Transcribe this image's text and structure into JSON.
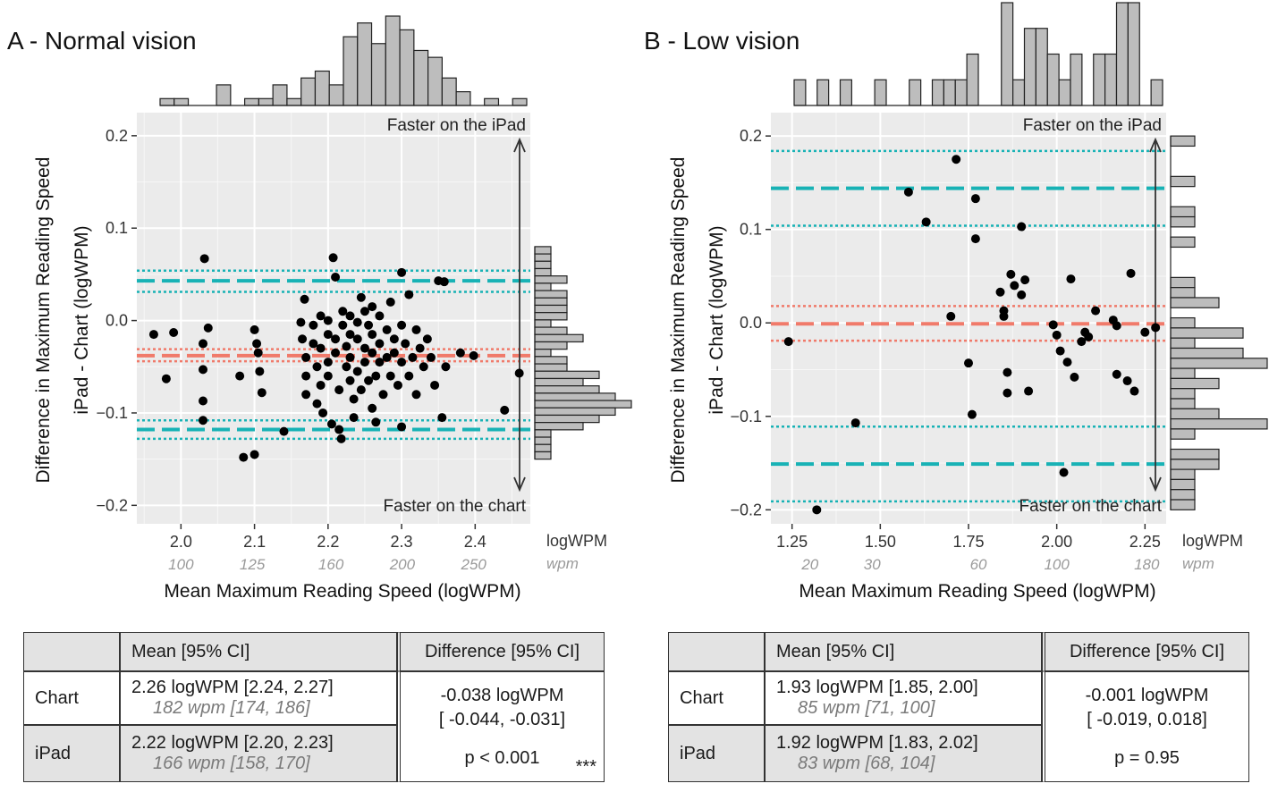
{
  "chart_data": [
    {
      "type": "scatter",
      "title": "A - Normal vision",
      "xlabel": "Mean Maximum Reading Speed (logWPM)",
      "ylabel": "Difference in Maximum Reading Speed iPad - Chart (logWPM)",
      "xlim": [
        1.94,
        2.475
      ],
      "ylim": [
        -0.22,
        0.225
      ],
      "x_ticks": [
        2.0,
        2.1,
        2.2,
        2.3,
        2.4
      ],
      "x_tick_labels": [
        "2.0",
        "2.1",
        "2.2",
        "2.3",
        "2.4"
      ],
      "x_unit_label": "logWPM",
      "wpm_ticks": [
        100,
        125,
        160,
        200,
        250
      ],
      "wpm_unit_label": "wpm",
      "y_ticks": [
        -0.2,
        -0.1,
        0.0,
        0.1,
        0.2
      ],
      "y_tick_labels": [
        "−0.2",
        "−0.1",
        "0.0",
        "0.1",
        "0.2"
      ],
      "annotation_top": "Faster on the iPad",
      "annotation_bottom": "Faster on the chart",
      "mean_diff": -0.038,
      "ci_mean": [
        -0.044,
        -0.031
      ],
      "loa_lower": -0.118,
      "loa_upper": 0.043,
      "loa_lower_ci": [
        -0.128,
        -0.108
      ],
      "loa_upper_ci": [
        0.031,
        0.054
      ],
      "colors": {
        "bias": "#f07a6a",
        "loa": "#18b2b5",
        "panel": "#ebebeb",
        "hist": "#bdbdbd"
      },
      "points": [
        [
          1.963,
          -0.015
        ],
        [
          1.99,
          -0.013
        ],
        [
          1.98,
          -0.063
        ],
        [
          2.032,
          0.067
        ],
        [
          2.03,
          -0.025
        ],
        [
          2.03,
          -0.053
        ],
        [
          2.03,
          -0.087
        ],
        [
          2.03,
          -0.108
        ],
        [
          2.037,
          -0.008
        ],
        [
          2.08,
          -0.06
        ],
        [
          2.085,
          -0.148
        ],
        [
          2.1,
          -0.145
        ],
        [
          2.1,
          -0.01
        ],
        [
          2.103,
          -0.025
        ],
        [
          2.105,
          -0.035
        ],
        [
          2.107,
          -0.055
        ],
        [
          2.11,
          -0.078
        ],
        [
          2.14,
          -0.12
        ],
        [
          2.163,
          -0.002
        ],
        [
          2.165,
          -0.02
        ],
        [
          2.17,
          -0.04
        ],
        [
          2.17,
          -0.06
        ],
        [
          2.17,
          -0.08
        ],
        [
          2.168,
          0.023
        ],
        [
          2.18,
          -0.005
        ],
        [
          2.18,
          -0.025
        ],
        [
          2.185,
          -0.05
        ],
        [
          2.185,
          -0.09
        ],
        [
          2.19,
          0.005
        ],
        [
          2.19,
          -0.03
        ],
        [
          2.19,
          -0.07
        ],
        [
          2.193,
          -0.1
        ],
        [
          2.2,
          0.0
        ],
        [
          2.2,
          -0.015
        ],
        [
          2.2,
          -0.045
        ],
        [
          2.2,
          -0.06
        ],
        [
          2.205,
          -0.112
        ],
        [
          2.207,
          0.068
        ],
        [
          2.21,
          0.047
        ],
        [
          2.21,
          -0.02
        ],
        [
          2.21,
          -0.035
        ],
        [
          2.215,
          -0.075
        ],
        [
          2.215,
          -0.118
        ],
        [
          2.218,
          -0.128
        ],
        [
          2.22,
          0.01
        ],
        [
          2.22,
          -0.005
        ],
        [
          2.225,
          -0.028
        ],
        [
          2.225,
          -0.05
        ],
        [
          2.23,
          0.005
        ],
        [
          2.23,
          -0.015
        ],
        [
          2.23,
          -0.04
        ],
        [
          2.23,
          -0.065
        ],
        [
          2.235,
          -0.085
        ],
        [
          2.235,
          -0.105
        ],
        [
          2.24,
          -0.002
        ],
        [
          2.24,
          -0.02
        ],
        [
          2.24,
          -0.055
        ],
        [
          2.245,
          0.025
        ],
        [
          2.245,
          -0.075
        ],
        [
          2.25,
          0.01
        ],
        [
          2.25,
          -0.03
        ],
        [
          2.25,
          -0.045
        ],
        [
          2.255,
          -0.005
        ],
        [
          2.255,
          -0.065
        ],
        [
          2.26,
          0.015
        ],
        [
          2.26,
          -0.015
        ],
        [
          2.26,
          -0.035
        ],
        [
          2.26,
          -0.095
        ],
        [
          2.265,
          -0.11
        ],
        [
          2.265,
          -0.06
        ],
        [
          2.27,
          0.005
        ],
        [
          2.27,
          -0.025
        ],
        [
          2.27,
          -0.045
        ],
        [
          2.275,
          -0.08
        ],
        [
          2.28,
          -0.01
        ],
        [
          2.28,
          -0.04
        ],
        [
          2.285,
          0.02
        ],
        [
          2.285,
          -0.06
        ],
        [
          2.29,
          -0.02
        ],
        [
          2.29,
          -0.035
        ],
        [
          2.295,
          -0.07
        ],
        [
          2.3,
          0.052
        ],
        [
          2.3,
          -0.005
        ],
        [
          2.3,
          -0.045
        ],
        [
          2.3,
          -0.115
        ],
        [
          2.305,
          -0.025
        ],
        [
          2.31,
          0.028
        ],
        [
          2.31,
          -0.06
        ],
        [
          2.315,
          -0.04
        ],
        [
          2.32,
          -0.01
        ],
        [
          2.32,
          -0.08
        ],
        [
          2.325,
          -0.03
        ],
        [
          2.33,
          -0.05
        ],
        [
          2.335,
          -0.02
        ],
        [
          2.34,
          -0.04
        ],
        [
          2.345,
          -0.07
        ],
        [
          2.35,
          0.043
        ],
        [
          2.355,
          -0.105
        ],
        [
          2.358,
          0.042
        ],
        [
          2.36,
          -0.05
        ],
        [
          2.38,
          -0.035
        ],
        [
          2.398,
          -0.038
        ],
        [
          2.44,
          -0.097
        ],
        [
          2.46,
          -0.057
        ]
      ],
      "hist_x": [
        1,
        1,
        0,
        0,
        3,
        0,
        1,
        1,
        3,
        1,
        4,
        5,
        3,
        10,
        12,
        9,
        13,
        11,
        8,
        7,
        4,
        2,
        0,
        1,
        0,
        1
      ],
      "hist_y": [
        1,
        1,
        1,
        1,
        2,
        1,
        2,
        2,
        2,
        2,
        1,
        2,
        3,
        2,
        1,
        2,
        2,
        4,
        3,
        4,
        5,
        6,
        5,
        4,
        3,
        1,
        1,
        1,
        1
      ]
    },
    {
      "type": "scatter",
      "title": "B - Low vision",
      "xlabel": "Mean Maximum Reading Speed (logWPM)",
      "ylabel": "Difference in Maximum Reading Speed iPad - Chart (logWPM)",
      "xlim": [
        1.19,
        2.31
      ],
      "ylim": [
        -0.215,
        0.225
      ],
      "x_ticks": [
        1.25,
        1.5,
        1.75,
        2.0,
        2.25
      ],
      "x_tick_labels": [
        "1.25",
        "1.50",
        "1.75",
        "2.00",
        "2.25"
      ],
      "x_unit_label": "logWPM",
      "wpm_ticks": [
        20,
        30,
        60,
        100,
        180
      ],
      "wpm_unit_label": "wpm",
      "y_ticks": [
        -0.2,
        -0.1,
        0.0,
        0.1,
        0.2
      ],
      "y_tick_labels": [
        "−0.2",
        "−0.1",
        "0.0",
        "0.1",
        "0.2"
      ],
      "annotation_top": "Faster on the iPad",
      "annotation_bottom": "Faster on the chart",
      "mean_diff": -0.001,
      "ci_mean": [
        -0.019,
        0.018
      ],
      "loa_lower": -0.151,
      "loa_upper": 0.144,
      "loa_lower_ci": [
        -0.191,
        -0.111
      ],
      "loa_upper_ci": [
        0.104,
        0.184
      ],
      "colors": {
        "bias": "#f07a6a",
        "loa": "#18b2b5",
        "panel": "#ebebeb",
        "hist": "#bdbdbd"
      },
      "points": [
        [
          1.24,
          -0.02
        ],
        [
          1.32,
          -0.2
        ],
        [
          1.43,
          -0.107
        ],
        [
          1.58,
          0.14
        ],
        [
          1.63,
          0.108
        ],
        [
          1.7,
          0.007
        ],
        [
          1.715,
          0.175
        ],
        [
          1.75,
          -0.043
        ],
        [
          1.76,
          -0.098
        ],
        [
          1.77,
          0.133
        ],
        [
          1.77,
          0.09
        ],
        [
          1.84,
          0.033
        ],
        [
          1.85,
          0.013
        ],
        [
          1.85,
          0.007
        ],
        [
          1.86,
          -0.053
        ],
        [
          1.86,
          -0.075
        ],
        [
          1.87,
          0.052
        ],
        [
          1.88,
          0.04
        ],
        [
          1.9,
          0.103
        ],
        [
          1.9,
          0.03
        ],
        [
          1.91,
          0.046
        ],
        [
          1.92,
          -0.073
        ],
        [
          1.99,
          -0.002
        ],
        [
          2.0,
          -0.013
        ],
        [
          2.01,
          -0.03
        ],
        [
          2.02,
          -0.16
        ],
        [
          2.03,
          -0.042
        ],
        [
          2.04,
          0.047
        ],
        [
          2.05,
          -0.058
        ],
        [
          2.07,
          -0.02
        ],
        [
          2.08,
          -0.01
        ],
        [
          2.09,
          -0.015
        ],
        [
          2.11,
          0.013
        ],
        [
          2.16,
          0.003
        ],
        [
          2.17,
          -0.003
        ],
        [
          2.17,
          -0.055
        ],
        [
          2.2,
          -0.062
        ],
        [
          2.21,
          0.053
        ],
        [
          2.22,
          -0.073
        ],
        [
          2.25,
          -0.01
        ],
        [
          2.28,
          -0.005
        ]
      ],
      "hist_x": [
        1,
        0,
        1,
        0,
        1,
        0,
        0,
        1,
        0,
        0,
        1,
        0,
        1,
        1,
        1,
        2,
        0,
        0,
        4,
        1,
        3,
        3,
        2,
        1,
        2,
        0,
        2,
        2,
        4,
        4,
        0,
        1
      ],
      "hist_y": [
        1,
        0,
        0,
        0,
        1,
        0,
        0,
        1,
        1,
        0,
        1,
        0,
        0,
        0,
        1,
        1,
        2,
        0,
        1,
        3,
        1,
        3,
        4,
        1,
        2,
        1,
        1,
        2,
        4,
        1,
        0,
        2,
        2,
        1,
        1,
        1,
        1
      ]
    }
  ],
  "tables": [
    {
      "header": [
        "",
        "Mean [95% CI]",
        "Difference [95% CI]"
      ],
      "rows": [
        {
          "label": "Chart",
          "mean": "2.26 logWPM [2.24, 2.27]",
          "mean_wpm": "182 wpm [174, 186]"
        },
        {
          "label": "iPad",
          "mean": "2.22 logWPM [2.20, 2.23]",
          "mean_wpm": "166 wpm [158, 170]"
        }
      ],
      "diff": "-0.038 logWPM",
      "diff_ci": "[ -0.044, -0.031]",
      "p": "p < 0.001",
      "stars": "***"
    },
    {
      "header": [
        "",
        "Mean [95% CI]",
        "Difference [95% CI]"
      ],
      "rows": [
        {
          "label": "Chart",
          "mean": "1.93 logWPM [1.85, 2.00]",
          "mean_wpm": "85 wpm [71, 100]"
        },
        {
          "label": "iPad",
          "mean": "1.92 logWPM [1.83, 2.02]",
          "mean_wpm": "83 wpm [68, 104]"
        }
      ],
      "diff": "-0.001 logWPM",
      "diff_ci": "[ -0.019, 0.018]",
      "p": "p = 0.95",
      "stars": ""
    }
  ]
}
